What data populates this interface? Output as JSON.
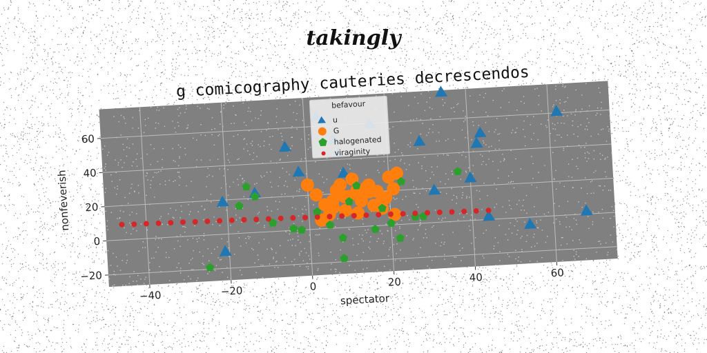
{
  "suptitle": "takingly",
  "chart_data": {
    "type": "scatter",
    "title": "g comicography cauteries decrescendos",
    "xlabel": "spectator",
    "ylabel": "nonfeverish",
    "xlim": [
      -50,
      75
    ],
    "ylim": [
      -27,
      77
    ],
    "xticks": [
      -40,
      -20,
      0,
      20,
      40,
      60
    ],
    "yticks": [
      -20,
      0,
      20,
      40,
      60
    ],
    "grid": true,
    "legend": {
      "title": "befavour",
      "placement": "top-center"
    },
    "series": [
      {
        "name": "u",
        "marker": "triangle",
        "color": "#1f77b4",
        "x": [
          -21,
          -21,
          -5,
          -2,
          3,
          7,
          8,
          9,
          16,
          28,
          31,
          34,
          40,
          42,
          43,
          44,
          54,
          62,
          68,
          -13
        ],
        "y": [
          19,
          -10,
          49,
          34,
          66,
          52,
          44,
          32,
          60,
          48,
          19,
          76,
          25,
          45,
          51,
          2,
          -4,
          61,
          2,
          23
        ]
      },
      {
        "name": "G",
        "marker": "circle",
        "color": "#ff7f0e",
        "x": [
          0,
          2,
          4,
          5,
          6,
          7,
          8,
          9,
          10,
          11,
          12,
          13,
          14,
          15,
          16,
          17,
          18,
          19,
          20,
          21,
          22,
          3,
          6,
          9,
          12,
          15,
          18,
          21
        ],
        "y": [
          26,
          20,
          14,
          8,
          16,
          22,
          25,
          10,
          18,
          28,
          21,
          15,
          22,
          24,
          12,
          20,
          10,
          16,
          28,
          21,
          30,
          5,
          12,
          18,
          8,
          20,
          14,
          6
        ]
      },
      {
        "name": "halogenated",
        "marker": "pentagon",
        "color": "#2ca02c",
        "x": [
          -25,
          -17,
          -15,
          -13,
          -9,
          -4,
          -2,
          2,
          5,
          8,
          8,
          12,
          16,
          18,
          20,
          22,
          23,
          26,
          28,
          37,
          10
        ],
        "y": [
          -19,
          16,
          27,
          21,
          5,
          1,
          0,
          10,
          2,
          -6,
          -18,
          24,
          -2,
          10,
          1,
          -8,
          25,
          4,
          4,
          29,
          15
        ]
      },
      {
        "name": "viraginity",
        "marker": "circle-small",
        "color": "#d62728",
        "x": [
          -46,
          -43,
          -40,
          -37,
          -34,
          -31,
          -28,
          -25,
          -22,
          -19,
          -16,
          -13,
          -10,
          -7,
          -4,
          -1,
          2,
          5,
          8,
          11,
          14,
          17,
          20,
          23,
          26,
          29,
          32,
          35,
          38,
          41,
          44
        ],
        "y": [
          9,
          8.8,
          8.7,
          8.6,
          8.5,
          8.4,
          8.2,
          8.1,
          8.0,
          7.9,
          7.8,
          7.6,
          7.5,
          7.4,
          7.3,
          7.1,
          7.0,
          6.9,
          6.8,
          6.6,
          6.5,
          6.4,
          6.3,
          6.1,
          6.0,
          5.9,
          5.8,
          5.6,
          5.5,
          5.4,
          5.3
        ]
      }
    ]
  }
}
